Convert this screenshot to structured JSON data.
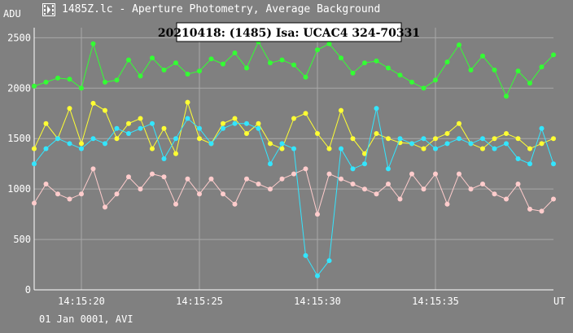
{
  "window": {
    "title": "1485Z.lc - Aperture Photometry, Average Background",
    "icon": "film-strip-icon"
  },
  "chart_data": {
    "type": "scatter",
    "title": "20210418: (1485) Isa: UCAC4 324-70331",
    "ylabel": "ADU",
    "xlabel": "UT",
    "date_label": "01 Jan 0001, AVI",
    "ylim": [
      0,
      2600
    ],
    "xlim": [
      "14:15:18",
      "14:15:40"
    ],
    "y_ticks": [
      "0",
      "500",
      "1000",
      "1500",
      "2000",
      "2500"
    ],
    "x_ticks": [
      "14:15:20",
      "14:15:25",
      "14:15:30",
      "14:15:35"
    ],
    "grid": true,
    "colors": {
      "background": "#808080",
      "grid": "#a8a8a8",
      "axis": "#ffffff"
    },
    "series": [
      {
        "color": "#33ff33",
        "x": [
          18.0,
          18.5,
          19.0,
          19.5,
          20.0,
          20.5,
          21.0,
          21.5,
          22.0,
          22.5,
          23.0,
          23.5,
          24.0,
          24.5,
          25.0,
          25.5,
          26.0,
          26.5,
          27.0,
          27.5,
          28.0,
          28.5,
          29.0,
          29.5,
          30.0,
          30.5,
          31.0,
          31.5,
          32.0,
          32.5,
          33.0,
          33.5,
          34.0,
          34.5,
          35.0,
          35.5,
          36.0,
          36.5,
          37.0,
          37.5,
          38.0,
          38.5,
          39.0,
          39.5,
          40.0
        ],
        "y": [
          2020,
          2060,
          2100,
          2090,
          2000,
          2440,
          2060,
          2080,
          2280,
          2120,
          2300,
          2180,
          2250,
          2140,
          2170,
          2290,
          2240,
          2350,
          2200,
          2460,
          2250,
          2280,
          2230,
          2110,
          2380,
          2440,
          2300,
          2150,
          2250,
          2270,
          2200,
          2130,
          2060,
          2000,
          2080,
          2260,
          2430,
          2180,
          2320,
          2180,
          1920,
          2170,
          2050,
          2210,
          2330
        ]
      },
      {
        "color": "#ffff33",
        "x": [
          18.0,
          18.5,
          19.0,
          19.5,
          20.0,
          20.5,
          21.0,
          21.5,
          22.0,
          22.5,
          23.0,
          23.5,
          24.0,
          24.5,
          25.0,
          25.5,
          26.0,
          26.5,
          27.0,
          27.5,
          28.0,
          28.5,
          29.0,
          29.5,
          30.0,
          30.5,
          31.0,
          31.5,
          32.0,
          32.5,
          33.0,
          33.5,
          34.0,
          34.5,
          35.0,
          35.5,
          36.0,
          36.5,
          37.0,
          37.5,
          38.0,
          38.5,
          39.0,
          39.5,
          40.0
        ],
        "y": [
          1400,
          1650,
          1500,
          1800,
          1450,
          1850,
          1780,
          1500,
          1650,
          1700,
          1400,
          1600,
          1350,
          1860,
          1500,
          1450,
          1650,
          1700,
          1550,
          1650,
          1450,
          1400,
          1700,
          1750,
          1550,
          1400,
          1780,
          1500,
          1350,
          1550,
          1500,
          1460,
          1450,
          1400,
          1500,
          1550,
          1650,
          1450,
          1400,
          1500,
          1550,
          1500,
          1400,
          1450,
          1500
        ]
      },
      {
        "color": "#33e6ff",
        "x": [
          18.0,
          18.5,
          19.0,
          19.5,
          20.0,
          20.5,
          21.0,
          21.5,
          22.0,
          22.5,
          23.0,
          23.5,
          24.0,
          24.5,
          25.0,
          25.5,
          26.0,
          26.5,
          27.0,
          27.5,
          28.0,
          28.5,
          29.0,
          29.5,
          30.0,
          30.5,
          31.0,
          31.5,
          32.0,
          32.5,
          33.0,
          33.5,
          34.0,
          34.5,
          35.0,
          35.5,
          36.0,
          36.5,
          37.0,
          37.5,
          38.0,
          38.5,
          39.0,
          39.5,
          40.0
        ],
        "y": [
          1250,
          1400,
          1500,
          1450,
          1400,
          1500,
          1450,
          1600,
          1550,
          1600,
          1650,
          1300,
          1500,
          1700,
          1600,
          1450,
          1600,
          1650,
          1650,
          1600,
          1250,
          1450,
          1400,
          340,
          140,
          290,
          1400,
          1200,
          1250,
          1800,
          1200,
          1500,
          1450,
          1500,
          1400,
          1450,
          1500,
          1450,
          1500,
          1400,
          1450,
          1300,
          1250,
          1600,
          1250
        ]
      },
      {
        "color": "#ffcccc",
        "x": [
          18.0,
          18.5,
          19.0,
          19.5,
          20.0,
          20.5,
          21.0,
          21.5,
          22.0,
          22.5,
          23.0,
          23.5,
          24.0,
          24.5,
          25.0,
          25.5,
          26.0,
          26.5,
          27.0,
          27.5,
          28.0,
          28.5,
          29.0,
          29.5,
          30.0,
          30.5,
          31.0,
          31.5,
          32.0,
          32.5,
          33.0,
          33.5,
          34.0,
          34.5,
          35.0,
          35.5,
          36.0,
          36.5,
          37.0,
          37.5,
          38.0,
          38.5,
          39.0,
          39.5,
          40.0
        ],
        "y": [
          860,
          1050,
          950,
          900,
          950,
          1200,
          820,
          950,
          1120,
          1000,
          1150,
          1120,
          850,
          1100,
          950,
          1100,
          950,
          850,
          1100,
          1050,
          1000,
          1100,
          1150,
          1200,
          750,
          1150,
          1100,
          1050,
          1000,
          950,
          1050,
          900,
          1150,
          1000,
          1150,
          850,
          1150,
          1000,
          1050,
          950,
          900,
          1050,
          800,
          780,
          900
        ]
      }
    ]
  }
}
